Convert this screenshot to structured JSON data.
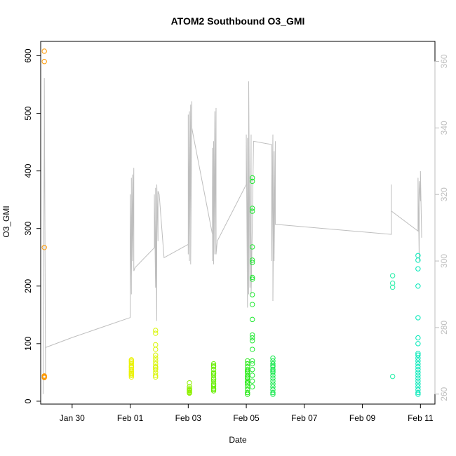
{
  "chart_data": {
    "type": "scatter",
    "title": "ATOM2 Southbound O3_GMI",
    "xlabel": "Date",
    "ylabel": "O3_GMI",
    "xlim": [
      "2017-01-28T22:00",
      "2017-02-11T12:00"
    ],
    "ylim": [
      -5,
      625
    ],
    "x_ticks": [
      {
        "date": "2017-01-30",
        "label": "Jan 30"
      },
      {
        "date": "2017-02-01",
        "label": "Feb 01"
      },
      {
        "date": "2017-02-03",
        "label": "Feb 03"
      },
      {
        "date": "2017-02-05",
        "label": "Feb 05"
      },
      {
        "date": "2017-02-07",
        "label": "Feb 07"
      },
      {
        "date": "2017-02-09",
        "label": "Feb 09"
      },
      {
        "date": "2017-02-11",
        "label": "Feb 11"
      }
    ],
    "y_ticks": [
      0,
      100,
      200,
      300,
      400,
      500,
      600
    ],
    "secondary_axis": {
      "ylim": [
        257,
        366
      ],
      "ticks": [
        260,
        280,
        300,
        320,
        340,
        360
      ],
      "color": "#bebebe"
    },
    "grid": false,
    "legend": "none",
    "point_series": [
      {
        "color": "#ff9900",
        "points": [
          [
            "2017-01-29T01:00",
            608
          ],
          [
            "2017-01-29T01:00",
            590
          ],
          [
            "2017-01-29T01:00",
            267
          ],
          [
            "2017-01-29T01:00",
            42
          ],
          [
            "2017-01-29T01:00",
            43
          ],
          [
            "2017-01-29T01:00",
            41
          ],
          [
            "2017-01-29T01:00",
            44
          ]
        ]
      },
      {
        "color": "#eaf200",
        "points": [
          [
            "2017-02-01T01:00",
            70
          ],
          [
            "2017-02-01T01:00",
            65
          ],
          [
            "2017-02-01T01:00",
            60
          ],
          [
            "2017-02-01T01:00",
            55
          ],
          [
            "2017-02-01T01:00",
            52
          ],
          [
            "2017-02-01T01:00",
            48
          ],
          [
            "2017-02-01T01:00",
            45
          ],
          [
            "2017-02-01T01:00",
            42
          ],
          [
            "2017-02-01T01:00",
            68
          ],
          [
            "2017-02-01T01:00",
            58
          ],
          [
            "2017-02-01T01:00",
            62
          ],
          [
            "2017-02-01T01:00",
            50
          ],
          [
            "2017-02-01T01:00",
            72
          ],
          [
            "2017-02-01T01:00",
            46
          ]
        ]
      },
      {
        "color": "#d8f500",
        "points": [
          [
            "2017-02-01T21:00",
            123
          ],
          [
            "2017-02-01T21:00",
            118
          ],
          [
            "2017-02-01T21:00",
            98
          ],
          [
            "2017-02-01T21:00",
            90
          ],
          [
            "2017-02-01T21:00",
            80
          ],
          [
            "2017-02-01T21:00",
            70
          ],
          [
            "2017-02-01T21:00",
            65
          ],
          [
            "2017-02-01T21:00",
            60
          ],
          [
            "2017-02-01T21:00",
            55
          ],
          [
            "2017-02-01T21:00",
            50
          ],
          [
            "2017-02-01T21:00",
            45
          ],
          [
            "2017-02-01T21:00",
            42
          ],
          [
            "2017-02-01T21:00",
            75
          ],
          [
            "2017-02-01T21:00",
            58
          ]
        ]
      },
      {
        "color": "#8ef000",
        "points": [
          [
            "2017-02-03T01:00",
            32
          ],
          [
            "2017-02-03T01:00",
            25
          ],
          [
            "2017-02-03T01:00",
            20
          ],
          [
            "2017-02-03T01:00",
            18
          ],
          [
            "2017-02-03T01:00",
            16
          ],
          [
            "2017-02-03T01:00",
            15
          ],
          [
            "2017-02-03T01:00",
            14
          ],
          [
            "2017-02-03T01:00",
            19
          ],
          [
            "2017-02-03T01:00",
            22
          ]
        ]
      },
      {
        "color": "#66ee00",
        "points": [
          [
            "2017-02-03T21:00",
            65
          ],
          [
            "2017-02-03T21:00",
            60
          ],
          [
            "2017-02-03T21:00",
            55
          ],
          [
            "2017-02-03T21:00",
            50
          ],
          [
            "2017-02-03T21:00",
            45
          ],
          [
            "2017-02-03T21:00",
            40
          ],
          [
            "2017-02-03T21:00",
            35
          ],
          [
            "2017-02-03T21:00",
            30
          ],
          [
            "2017-02-03T21:00",
            25
          ],
          [
            "2017-02-03T21:00",
            20
          ],
          [
            "2017-02-03T21:00",
            18
          ],
          [
            "2017-02-03T21:00",
            62
          ],
          [
            "2017-02-03T21:00",
            48
          ],
          [
            "2017-02-03T21:00",
            38
          ],
          [
            "2017-02-03T21:00",
            28
          ],
          [
            "2017-02-03T21:00",
            22
          ]
        ]
      },
      {
        "color": "#22e810",
        "points": [
          [
            "2017-02-05T01:00",
            70
          ],
          [
            "2017-02-05T01:00",
            65
          ],
          [
            "2017-02-05T01:00",
            60
          ],
          [
            "2017-02-05T01:00",
            55
          ],
          [
            "2017-02-05T01:00",
            50
          ],
          [
            "2017-02-05T01:00",
            45
          ],
          [
            "2017-02-05T01:00",
            40
          ],
          [
            "2017-02-05T01:00",
            35
          ],
          [
            "2017-02-05T01:00",
            30
          ],
          [
            "2017-02-05T01:00",
            25
          ],
          [
            "2017-02-05T01:00",
            20
          ],
          [
            "2017-02-05T01:00",
            15
          ],
          [
            "2017-02-05T01:00",
            12
          ],
          [
            "2017-02-05T01:00",
            52
          ],
          [
            "2017-02-05T01:00",
            42
          ],
          [
            "2017-02-05T01:00",
            32
          ]
        ]
      },
      {
        "color": "#1ee830",
        "points": [
          [
            "2017-02-05T05:00",
            388
          ],
          [
            "2017-02-05T05:00",
            382
          ],
          [
            "2017-02-05T05:00",
            335
          ],
          [
            "2017-02-05T05:00",
            330
          ],
          [
            "2017-02-05T05:00",
            268
          ],
          [
            "2017-02-05T05:00",
            245
          ],
          [
            "2017-02-05T05:00",
            241
          ],
          [
            "2017-02-05T05:00",
            215
          ],
          [
            "2017-02-05T05:00",
            212
          ],
          [
            "2017-02-05T05:00",
            185
          ],
          [
            "2017-02-05T05:00",
            168
          ],
          [
            "2017-02-05T05:00",
            142
          ],
          [
            "2017-02-05T05:00",
            115
          ],
          [
            "2017-02-05T05:00",
            110
          ],
          [
            "2017-02-05T05:00",
            105
          ],
          [
            "2017-02-05T05:00",
            90
          ],
          [
            "2017-02-05T05:00",
            70
          ],
          [
            "2017-02-05T05:00",
            65
          ],
          [
            "2017-02-05T05:00",
            55
          ],
          [
            "2017-02-05T05:00",
            45
          ],
          [
            "2017-02-05T05:00",
            35
          ],
          [
            "2017-02-05T05:00",
            25
          ]
        ]
      },
      {
        "color": "#12e84a",
        "points": [
          [
            "2017-02-05T22:00",
            75
          ],
          [
            "2017-02-05T22:00",
            70
          ],
          [
            "2017-02-05T22:00",
            65
          ],
          [
            "2017-02-05T22:00",
            60
          ],
          [
            "2017-02-05T22:00",
            55
          ],
          [
            "2017-02-05T22:00",
            50
          ],
          [
            "2017-02-05T22:00",
            45
          ],
          [
            "2017-02-05T22:00",
            40
          ],
          [
            "2017-02-05T22:00",
            35
          ],
          [
            "2017-02-05T22:00",
            30
          ],
          [
            "2017-02-05T22:00",
            25
          ],
          [
            "2017-02-05T22:00",
            20
          ],
          [
            "2017-02-05T22:00",
            15
          ],
          [
            "2017-02-05T22:00",
            12
          ],
          [
            "2017-02-05T22:00",
            62
          ],
          [
            "2017-02-05T22:00",
            52
          ]
        ]
      },
      {
        "color": "#22eea6",
        "points": [
          [
            "2017-02-10T01:00",
            218
          ],
          [
            "2017-02-10T01:00",
            205
          ],
          [
            "2017-02-10T01:00",
            198
          ],
          [
            "2017-02-10T01:00",
            43
          ]
        ]
      },
      {
        "color": "#00e8b8",
        "points": [
          [
            "2017-02-10T22:00",
            253
          ],
          [
            "2017-02-10T22:00",
            245
          ],
          [
            "2017-02-10T22:00",
            230
          ],
          [
            "2017-02-10T22:00",
            200
          ],
          [
            "2017-02-10T22:00",
            145
          ],
          [
            "2017-02-10T22:00",
            110
          ],
          [
            "2017-02-10T22:00",
            100
          ],
          [
            "2017-02-10T22:00",
            83
          ],
          [
            "2017-02-10T22:00",
            80
          ],
          [
            "2017-02-10T22:00",
            75
          ],
          [
            "2017-02-10T22:00",
            70
          ],
          [
            "2017-02-10T22:00",
            65
          ],
          [
            "2017-02-10T22:00",
            60
          ],
          [
            "2017-02-10T22:00",
            55
          ],
          [
            "2017-02-10T22:00",
            50
          ],
          [
            "2017-02-10T22:00",
            45
          ],
          [
            "2017-02-10T22:00",
            40
          ],
          [
            "2017-02-10T22:00",
            35
          ],
          [
            "2017-02-10T22:00",
            30
          ],
          [
            "2017-02-10T22:00",
            25
          ],
          [
            "2017-02-10T22:00",
            20
          ],
          [
            "2017-02-10T22:00",
            15
          ],
          [
            "2017-02-10T22:00",
            12
          ]
        ]
      }
    ],
    "line_series": {
      "color": "#bebebe",
      "axis": "secondary",
      "points": [
        [
          "2017-01-29T00:00",
          260
        ],
        [
          "2017-01-29T01:00",
          340
        ],
        [
          "2017-01-29T01:00",
          355
        ],
        [
          "2017-01-29T02:00",
          265
        ],
        [
          "2017-01-29T02:00",
          274
        ],
        [
          "2017-01-30T00:00",
          277
        ],
        [
          "2017-01-31T00:00",
          280
        ],
        [
          "2017-02-01T00:00",
          283
        ],
        [
          "2017-02-01T00:00",
          320
        ],
        [
          "2017-02-01T01:00",
          290
        ],
        [
          "2017-02-01T01:00",
          325
        ],
        [
          "2017-02-01T01:00",
          295
        ],
        [
          "2017-02-01T02:00",
          326
        ],
        [
          "2017-02-01T02:00",
          300
        ],
        [
          "2017-02-01T03:00",
          328
        ],
        [
          "2017-02-01T03:00",
          297
        ],
        [
          "2017-02-01T04:00",
          298
        ],
        [
          "2017-02-01T20:00",
          304
        ],
        [
          "2017-02-01T20:00",
          320
        ],
        [
          "2017-02-01T21:00",
          292
        ],
        [
          "2017-02-01T21:00",
          322
        ],
        [
          "2017-02-01T22:00",
          282
        ],
        [
          "2017-02-01T22:00",
          323
        ],
        [
          "2017-02-01T23:00",
          306
        ],
        [
          "2017-02-01T23:00",
          321
        ],
        [
          "2017-02-02T00:00",
          320
        ],
        [
          "2017-02-02T04:00",
          301
        ],
        [
          "2017-02-03T00:00",
          305
        ],
        [
          "2017-02-03T00:00",
          344
        ],
        [
          "2017-02-03T00:00",
          302
        ],
        [
          "2017-02-03T01:00",
          345
        ],
        [
          "2017-02-03T01:00",
          300
        ],
        [
          "2017-02-03T02:00",
          347
        ],
        [
          "2017-02-03T02:00",
          299
        ],
        [
          "2017-02-03T03:00",
          348
        ],
        [
          "2017-02-03T03:00",
          340
        ],
        [
          "2017-02-03T04:00",
          338
        ],
        [
          "2017-02-03T20:00",
          308
        ],
        [
          "2017-02-03T20:00",
          334
        ],
        [
          "2017-02-03T20:00",
          300
        ],
        [
          "2017-02-03T21:00",
          336
        ],
        [
          "2017-02-03T21:00",
          299
        ],
        [
          "2017-02-03T22:00",
          345
        ],
        [
          "2017-02-03T22:00",
          302
        ],
        [
          "2017-02-03T23:00",
          346
        ],
        [
          "2017-02-03T23:00",
          302
        ],
        [
          "2017-02-04T00:00",
          306
        ],
        [
          "2017-02-05T00:00",
          323
        ],
        [
          "2017-02-05T00:00",
          338
        ],
        [
          "2017-02-05T01:00",
          286
        ],
        [
          "2017-02-05T01:00",
          337
        ],
        [
          "2017-02-05T02:00",
          290
        ],
        [
          "2017-02-05T02:00",
          354
        ],
        [
          "2017-02-05T03:00",
          292
        ],
        [
          "2017-02-05T04:00",
          338
        ],
        [
          "2017-02-05T04:00",
          290
        ],
        [
          "2017-02-05T05:00",
          311
        ],
        [
          "2017-02-05T06:00",
          336
        ],
        [
          "2017-02-05T21:00",
          335
        ],
        [
          "2017-02-05T21:00",
          332
        ],
        [
          "2017-02-05T21:00",
          300
        ],
        [
          "2017-02-05T22:00",
          338
        ],
        [
          "2017-02-05T22:00",
          288
        ],
        [
          "2017-02-05T23:00",
          333
        ],
        [
          "2017-02-05T23:00",
          300
        ],
        [
          "2017-02-06T00:00",
          336
        ],
        [
          "2017-02-06T00:00",
          311
        ],
        [
          "2017-02-06T01:00",
          311
        ],
        [
          "2017-02-10T00:00",
          308
        ],
        [
          "2017-02-10T00:00",
          315
        ],
        [
          "2017-02-10T00:00",
          323
        ],
        [
          "2017-02-10T00:00",
          315
        ],
        [
          "2017-02-10T22:00",
          309
        ],
        [
          "2017-02-10T22:00",
          325
        ],
        [
          "2017-02-10T23:00",
          300
        ],
        [
          "2017-02-10T23:00",
          324
        ],
        [
          "2017-02-11T00:00",
          318
        ],
        [
          "2017-02-11T00:00",
          327
        ],
        [
          "2017-02-11T01:00",
          307
        ]
      ]
    }
  }
}
